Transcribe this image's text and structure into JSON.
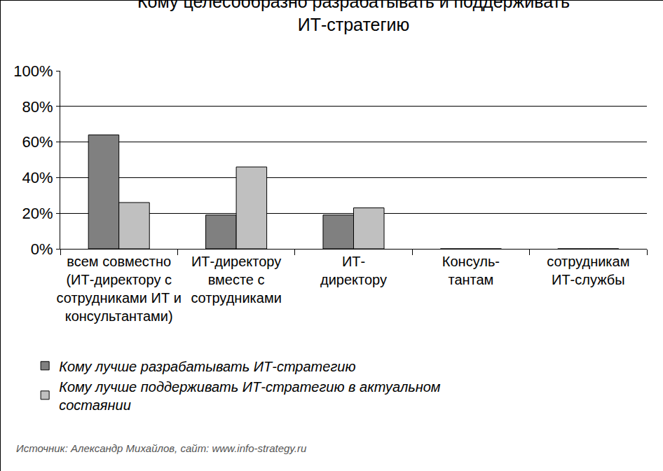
{
  "chart_data": {
    "type": "bar",
    "title": "Кому целесообразно разрабатывать и поддерживать\nИТ-стратегию",
    "categories": [
      "всем совместно\n(ИТ-директору с\nсотрудниками ИТ и\nконсультантами)",
      "ИТ-директору\nвместе с\nсотрудниками",
      "ИТ-\nдиректору",
      "Консуль-\nтантам",
      "сотрудникам\nИТ-службы"
    ],
    "series": [
      {
        "name": "Кому лучше разрабатывать ИТ-стратегию",
        "color": "#808080",
        "values": [
          64,
          19,
          19,
          0,
          0
        ]
      },
      {
        "name": "Кому лучше поддерживать ИТ-стратегию в актуальном\nсостаянии",
        "color": "#c0c0c0",
        "values": [
          26,
          46,
          23,
          0,
          0
        ]
      }
    ],
    "ylim": [
      0,
      100
    ],
    "yticks": [
      {
        "value": 0,
        "label": "0%"
      },
      {
        "value": 20,
        "label": "20%"
      },
      {
        "value": 40,
        "label": "40%"
      },
      {
        "value": 60,
        "label": "60%"
      },
      {
        "value": 80,
        "label": "80%"
      },
      {
        "value": 100,
        "label": "100%"
      }
    ],
    "grid": true,
    "legend": "bottom",
    "annotations": [
      "Источник: Александр Михайлов, сайт: www.info-strategy.ru"
    ]
  }
}
